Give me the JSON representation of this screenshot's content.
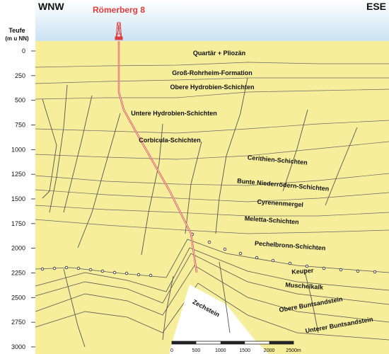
{
  "header": {
    "left": "WNW",
    "right": "ESE"
  },
  "well": {
    "name": "Römerberg 8"
  },
  "axis": {
    "title_line1": "Teufe",
    "title_line2": "(m u NN)",
    "ticks": [
      "0",
      "250",
      "500",
      "750",
      "1000",
      "1250",
      "1500",
      "1750",
      "2000",
      "2250",
      "2500",
      "2750",
      "3000"
    ]
  },
  "layers": [
    {
      "label": "Quartär + Pliozän",
      "color": "#f6ee9a"
    },
    {
      "label": "Groß-Rohrheim-Formation",
      "color": "#f2e35a"
    },
    {
      "label": "Obere Hydrobien-Schichten",
      "color": "#f4e626"
    },
    {
      "label": "Untere Hydrobien-Schichten",
      "color": "#f0e21c"
    },
    {
      "label": "Corbicula-Schichten",
      "color": "#e2dd45"
    },
    {
      "label": "Cerithien-Schichten",
      "color": "#ccc85a"
    },
    {
      "label": "Bunte Niederrödern-Schichten",
      "color": "#b8b44a"
    },
    {
      "label": "Cyrenenmergel",
      "color": "#a39e36"
    },
    {
      "label": "Meletta-Schichten",
      "color": "#8a8626"
    },
    {
      "label": "Pechelbronn-Schichten",
      "color": "#6b6a14"
    },
    {
      "label": "Keuper",
      "color": "#f29a3a"
    },
    {
      "label": "Muschelkalk",
      "color": "#e6a0d2"
    },
    {
      "label": "Obere Buntsandstein",
      "color": "#ef8a5a"
    },
    {
      "label": "Unterer Buntsandstein",
      "color": "#e57a52"
    },
    {
      "label": "Zechstein",
      "color": "#a8dde4"
    }
  ],
  "scale": {
    "ticks": [
      "0",
      "500",
      "1000",
      "1500",
      "2000",
      "2500m"
    ]
  },
  "colors": {
    "sky": "#c9e3f2",
    "well_line": "#e03a3a",
    "fault": "#555555"
  }
}
